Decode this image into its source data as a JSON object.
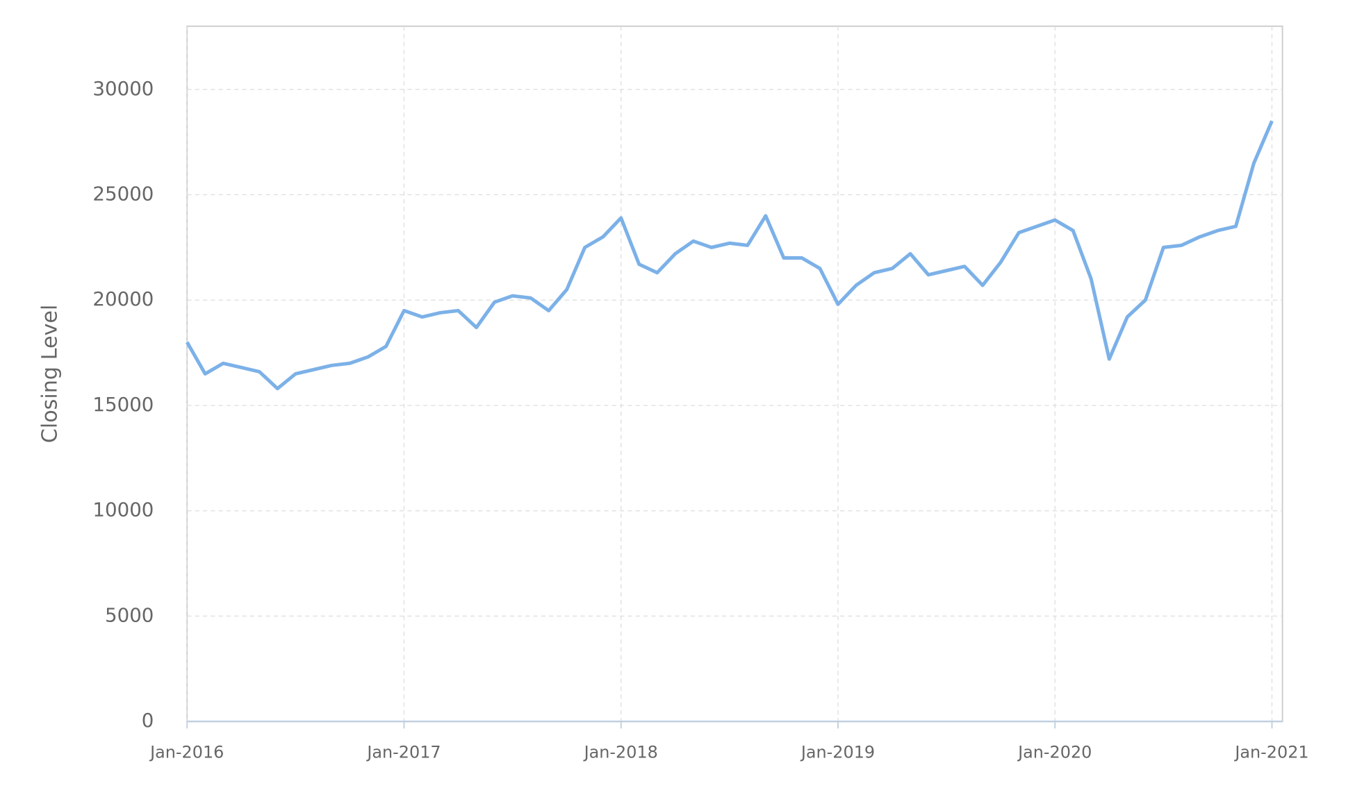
{
  "chart_data": {
    "type": "line",
    "y_label": "Closing Level",
    "x": [
      "2016-01",
      "2016-02",
      "2016-03",
      "2016-04",
      "2016-05",
      "2016-06",
      "2016-07",
      "2016-08",
      "2016-09",
      "2016-10",
      "2016-11",
      "2016-12",
      "2017-01",
      "2017-02",
      "2017-03",
      "2017-04",
      "2017-05",
      "2017-06",
      "2017-07",
      "2017-08",
      "2017-09",
      "2017-10",
      "2017-11",
      "2017-12",
      "2018-01",
      "2018-02",
      "2018-03",
      "2018-04",
      "2018-05",
      "2018-06",
      "2018-07",
      "2018-08",
      "2018-09",
      "2018-10",
      "2018-11",
      "2018-12",
      "2019-01",
      "2019-02",
      "2019-03",
      "2019-04",
      "2019-05",
      "2019-06",
      "2019-07",
      "2019-08",
      "2019-09",
      "2019-10",
      "2019-11",
      "2019-12",
      "2020-01",
      "2020-02",
      "2020-03",
      "2020-04",
      "2020-05",
      "2020-06",
      "2020-07",
      "2020-08",
      "2020-09",
      "2020-10",
      "2020-11",
      "2020-12",
      "2021-01"
    ],
    "series": [
      {
        "name": "Closing Level",
        "color": "#7cb1e8",
        "values": [
          18000,
          16500,
          17000,
          16800,
          16600,
          15800,
          16500,
          16700,
          16900,
          17000,
          17300,
          17800,
          19500,
          19200,
          19400,
          19500,
          18700,
          19900,
          20200,
          20100,
          19500,
          20500,
          22500,
          23000,
          23900,
          21700,
          21300,
          22200,
          22800,
          22500,
          22700,
          22600,
          24000,
          22000,
          22000,
          21500,
          19800,
          20700,
          21300,
          21500,
          22200,
          21200,
          21400,
          21600,
          20700,
          21800,
          23200,
          23500,
          23800,
          23300,
          21000,
          17200,
          19200,
          20000,
          22500,
          22600,
          23000,
          23300,
          23500,
          26500,
          28500
        ]
      }
    ],
    "xlim": [
      "2016-01",
      "2021-01"
    ],
    "xticks": [
      {
        "value": "2016-01",
        "label": "Jan-2016"
      },
      {
        "value": "2017-01",
        "label": "Jan-2017"
      },
      {
        "value": "2018-01",
        "label": "Jan-2018"
      },
      {
        "value": "2019-01",
        "label": "Jan-2019"
      },
      {
        "value": "2020-01",
        "label": "Jan-2020"
      },
      {
        "value": "2021-01",
        "label": "Jan-2021"
      }
    ],
    "ylim": [
      0,
      33000
    ],
    "yticks": [
      0,
      5000,
      10000,
      15000,
      20000,
      25000,
      30000
    ],
    "grid": true
  }
}
